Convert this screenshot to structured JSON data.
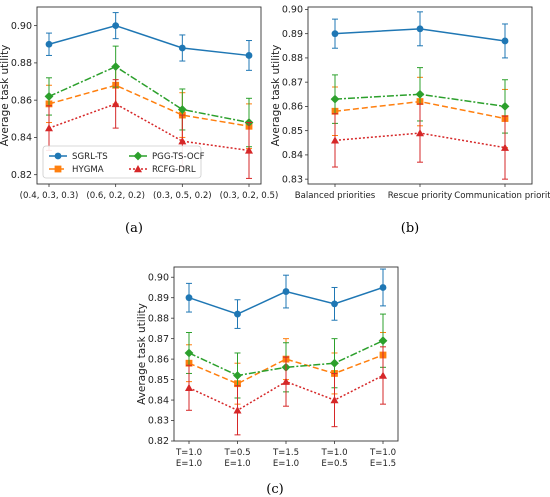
{
  "series_styles": [
    {
      "name": "SGRL-TS",
      "color": "#1f77b4",
      "marker": "circle",
      "dash": ""
    },
    {
      "name": "HYGMA",
      "color": "#ff7f0e",
      "marker": "square",
      "dash": "6,3"
    },
    {
      "name": "PGG-TS-OCF",
      "color": "#2ca02c",
      "marker": "diamond",
      "dash": "7,2,2,2"
    },
    {
      "name": "RCFG-DRL",
      "color": "#d62728",
      "marker": "triangle",
      "dash": "2,2"
    }
  ],
  "chart_data": [
    {
      "type": "line",
      "caption": "(a)",
      "ylabel": "Average task utility",
      "ylim": [
        0.815,
        0.91
      ],
      "yticks": [
        "0.82",
        "0.84",
        "0.86",
        "0.88",
        "0.90"
      ],
      "ytick_values": [
        0.82,
        0.84,
        0.86,
        0.88,
        0.9
      ],
      "categories": [
        [
          "(0.4, 0.3, 0.3)"
        ],
        [
          "(0.6, 0.2, 0.2)"
        ],
        [
          "(0.3, 0.5, 0.2)"
        ],
        [
          "(0.3, 0.2, 0.5)"
        ]
      ],
      "legend": true,
      "series": [
        {
          "name": "SGRL-TS",
          "values": [
            0.89,
            0.9,
            0.888,
            0.884
          ],
          "err": [
            0.006,
            0.007,
            0.007,
            0.008
          ]
        },
        {
          "name": "HYGMA",
          "values": [
            0.858,
            0.868,
            0.852,
            0.846
          ],
          "err": [
            0.01,
            0.01,
            0.012,
            0.012
          ]
        },
        {
          "name": "PGG-TS-OCF",
          "values": [
            0.862,
            0.878,
            0.855,
            0.848
          ],
          "err": [
            0.01,
            0.011,
            0.011,
            0.013
          ]
        },
        {
          "name": "RCFG-DRL",
          "values": [
            0.845,
            0.858,
            0.838,
            0.833
          ],
          "err": [
            0.012,
            0.013,
            0.014,
            0.015
          ]
        }
      ]
    },
    {
      "type": "line",
      "caption": "(b)",
      "ylabel": "Average task utility",
      "ylim": [
        0.828,
        0.901
      ],
      "yticks": [
        "0.83",
        "0.84",
        "0.85",
        "0.86",
        "0.87",
        "0.88",
        "0.89",
        "0.90"
      ],
      "ytick_values": [
        0.83,
        0.84,
        0.85,
        0.86,
        0.87,
        0.88,
        0.89,
        0.9
      ],
      "categories": [
        [
          "Balanced priorities"
        ],
        [
          "Rescue priority"
        ],
        [
          "Communication priority"
        ]
      ],
      "legend": false,
      "series": [
        {
          "name": "SGRL-TS",
          "values": [
            0.89,
            0.892,
            0.887
          ],
          "err": [
            0.006,
            0.007,
            0.007
          ]
        },
        {
          "name": "HYGMA",
          "values": [
            0.858,
            0.862,
            0.855
          ],
          "err": [
            0.01,
            0.01,
            0.012
          ]
        },
        {
          "name": "PGG-TS-OCF",
          "values": [
            0.863,
            0.865,
            0.86
          ],
          "err": [
            0.01,
            0.011,
            0.011
          ]
        },
        {
          "name": "RCFG-DRL",
          "values": [
            0.846,
            0.849,
            0.843
          ],
          "err": [
            0.011,
            0.012,
            0.013
          ]
        }
      ]
    },
    {
      "type": "line",
      "caption": "(c)",
      "ylabel": "Average task utility",
      "ylim": [
        0.82,
        0.905
      ],
      "yticks": [
        "0.82",
        "0.83",
        "0.84",
        "0.85",
        "0.86",
        "0.87",
        "0.88",
        "0.89",
        "0.90"
      ],
      "ytick_values": [
        0.82,
        0.83,
        0.84,
        0.85,
        0.86,
        0.87,
        0.88,
        0.89,
        0.9
      ],
      "categories": [
        [
          "T=1.0",
          "E=1.0"
        ],
        [
          "T=0.5",
          "E=1.0"
        ],
        [
          "T=1.5",
          "E=1.0"
        ],
        [
          "T=1.0",
          "E=0.5"
        ],
        [
          "T=1.0",
          "E=1.5"
        ]
      ],
      "legend": false,
      "series": [
        {
          "name": "SGRL-TS",
          "values": [
            0.89,
            0.882,
            0.893,
            0.887,
            0.895
          ],
          "err": [
            0.007,
            0.007,
            0.008,
            0.008,
            0.009
          ]
        },
        {
          "name": "HYGMA",
          "values": [
            0.858,
            0.848,
            0.86,
            0.853,
            0.862
          ],
          "err": [
            0.009,
            0.01,
            0.01,
            0.01,
            0.011
          ]
        },
        {
          "name": "PGG-TS-OCF",
          "values": [
            0.863,
            0.852,
            0.856,
            0.858,
            0.869
          ],
          "err": [
            0.01,
            0.011,
            0.012,
            0.012,
            0.013
          ]
        },
        {
          "name": "RCFG-DRL",
          "values": [
            0.846,
            0.835,
            0.849,
            0.84,
            0.852
          ],
          "err": [
            0.011,
            0.012,
            0.012,
            0.013,
            0.014
          ]
        }
      ]
    }
  ]
}
